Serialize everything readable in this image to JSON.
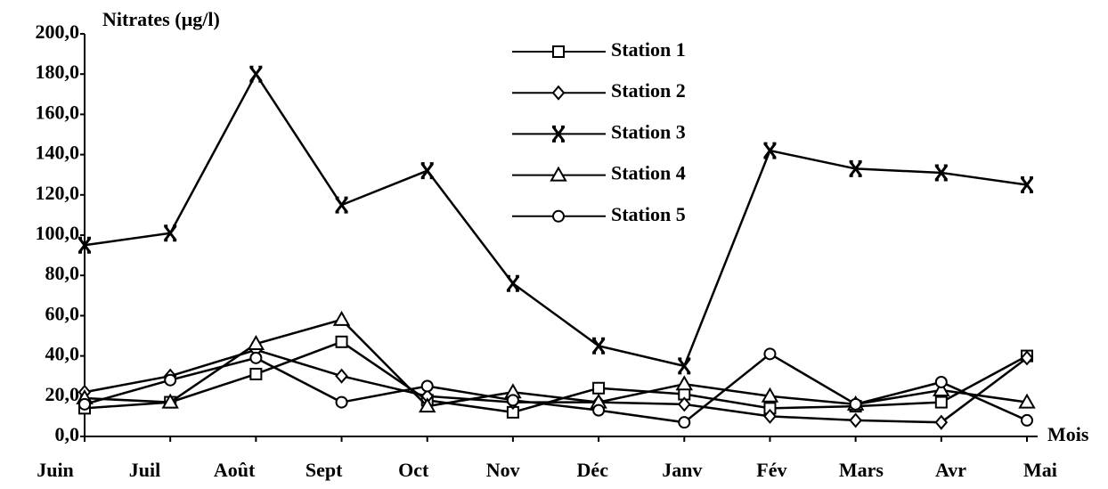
{
  "chart_data": {
    "type": "line",
    "y_label": "Nitrates (µg/l)",
    "x_label": "Mois",
    "categories": [
      "Juin",
      "Juil",
      "Août",
      "Sept",
      "Oct",
      "Nov",
      "Déc",
      "Janv",
      "Fév",
      "Mars",
      "Avr",
      "Mai"
    ],
    "series": [
      {
        "name": "Station 1",
        "color": "#000000",
        "marker": "square",
        "values": [
          14,
          17,
          31,
          47,
          18,
          12,
          24,
          21,
          14,
          15,
          17,
          40
        ]
      },
      {
        "name": "Station 2",
        "color": "#000000",
        "marker": "diamond",
        "values": [
          22,
          30,
          43,
          30,
          20,
          17,
          17,
          16,
          10,
          8,
          7,
          39
        ]
      },
      {
        "name": "Station 3",
        "color": "#000000",
        "marker": "star",
        "values": [
          95,
          101,
          180,
          115,
          132,
          76,
          45,
          35,
          142,
          133,
          131,
          125
        ]
      },
      {
        "name": "Station 4",
        "color": "#000000",
        "marker": "triangle",
        "values": [
          19,
          17,
          46,
          58,
          15,
          22,
          17,
          26,
          20,
          16,
          23,
          17
        ]
      },
      {
        "name": "Station 5",
        "color": "#000000",
        "marker": "circle",
        "values": [
          16,
          28,
          39,
          17,
          25,
          18,
          13,
          7,
          41,
          16,
          27,
          8
        ]
      }
    ],
    "ylim": [
      0,
      200
    ],
    "yticks": [
      {
        "value": 0,
        "label": "0,0"
      },
      {
        "value": 20,
        "label": "20,0"
      },
      {
        "value": 40,
        "label": "40,0"
      },
      {
        "value": 60,
        "label": "60,0"
      },
      {
        "value": 80,
        "label": "80,0"
      },
      {
        "value": 100,
        "label": "100,0"
      },
      {
        "value": 120,
        "label": "120,0"
      },
      {
        "value": 140,
        "label": "140,0"
      },
      {
        "value": 160,
        "label": "160,0"
      },
      {
        "value": 180,
        "label": "180,0"
      },
      {
        "value": 200,
        "label": "200,0"
      }
    ],
    "grid": false,
    "legend": "top-center"
  }
}
